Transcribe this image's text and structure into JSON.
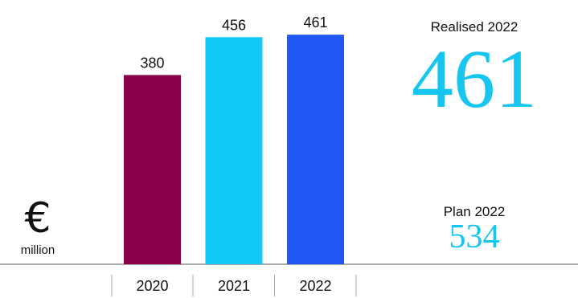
{
  "chart_data": {
    "type": "bar",
    "categories": [
      "2020",
      "2021",
      "2022"
    ],
    "values": [
      380,
      456,
      461
    ],
    "colors": [
      "#8a0048",
      "#12c8f5",
      "#2158f5"
    ],
    "ylim": [
      0,
      500
    ],
    "grid": false,
    "unit_symbol": "€",
    "unit_text": "million"
  },
  "kpis": {
    "realised_label": "Realised 2022",
    "realised_value": "461",
    "plan_label": "Plan 2022",
    "plan_value": "534"
  }
}
